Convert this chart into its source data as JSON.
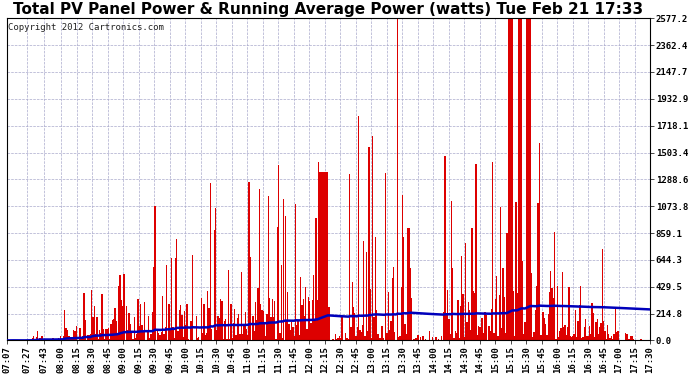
{
  "title": "Total PV Panel Power & Running Average Power (watts) Tue Feb 21 17:33",
  "copyright": "Copyright 2012 Cartronics.com",
  "background_color": "#ffffff",
  "plot_bg_color": "#ffffff",
  "bar_color": "#dd0000",
  "line_color": "#0000bb",
  "grid_color": "#aaaacc",
  "ytick_labels": [
    "0.0",
    "214.8",
    "429.5",
    "644.3",
    "859.1",
    "1073.8",
    "1288.6",
    "1503.4",
    "1718.1",
    "1932.9",
    "2147.7",
    "2362.4",
    "2577.2"
  ],
  "ytick_values": [
    0.0,
    214.8,
    429.5,
    644.3,
    859.1,
    1073.8,
    1288.6,
    1503.4,
    1718.1,
    1932.9,
    2147.7,
    2362.4,
    2577.2
  ],
  "ymax": 2577.2,
  "ymin": 0.0,
  "xtick_labels": [
    "07:07",
    "07:27",
    "07:43",
    "08:00",
    "08:15",
    "08:30",
    "08:45",
    "09:00",
    "09:15",
    "09:30",
    "09:45",
    "10:00",
    "10:15",
    "10:30",
    "10:45",
    "11:00",
    "11:15",
    "11:30",
    "11:45",
    "12:00",
    "12:15",
    "12:30",
    "12:45",
    "13:00",
    "13:15",
    "13:30",
    "13:45",
    "14:00",
    "14:15",
    "14:30",
    "14:45",
    "15:00",
    "15:15",
    "15:30",
    "15:45",
    "16:00",
    "16:15",
    "16:30",
    "16:45",
    "17:00",
    "17:15",
    "17:30"
  ],
  "title_fontsize": 11,
  "copyright_fontsize": 6.5,
  "tick_fontsize": 6.5,
  "line_width": 1.8
}
